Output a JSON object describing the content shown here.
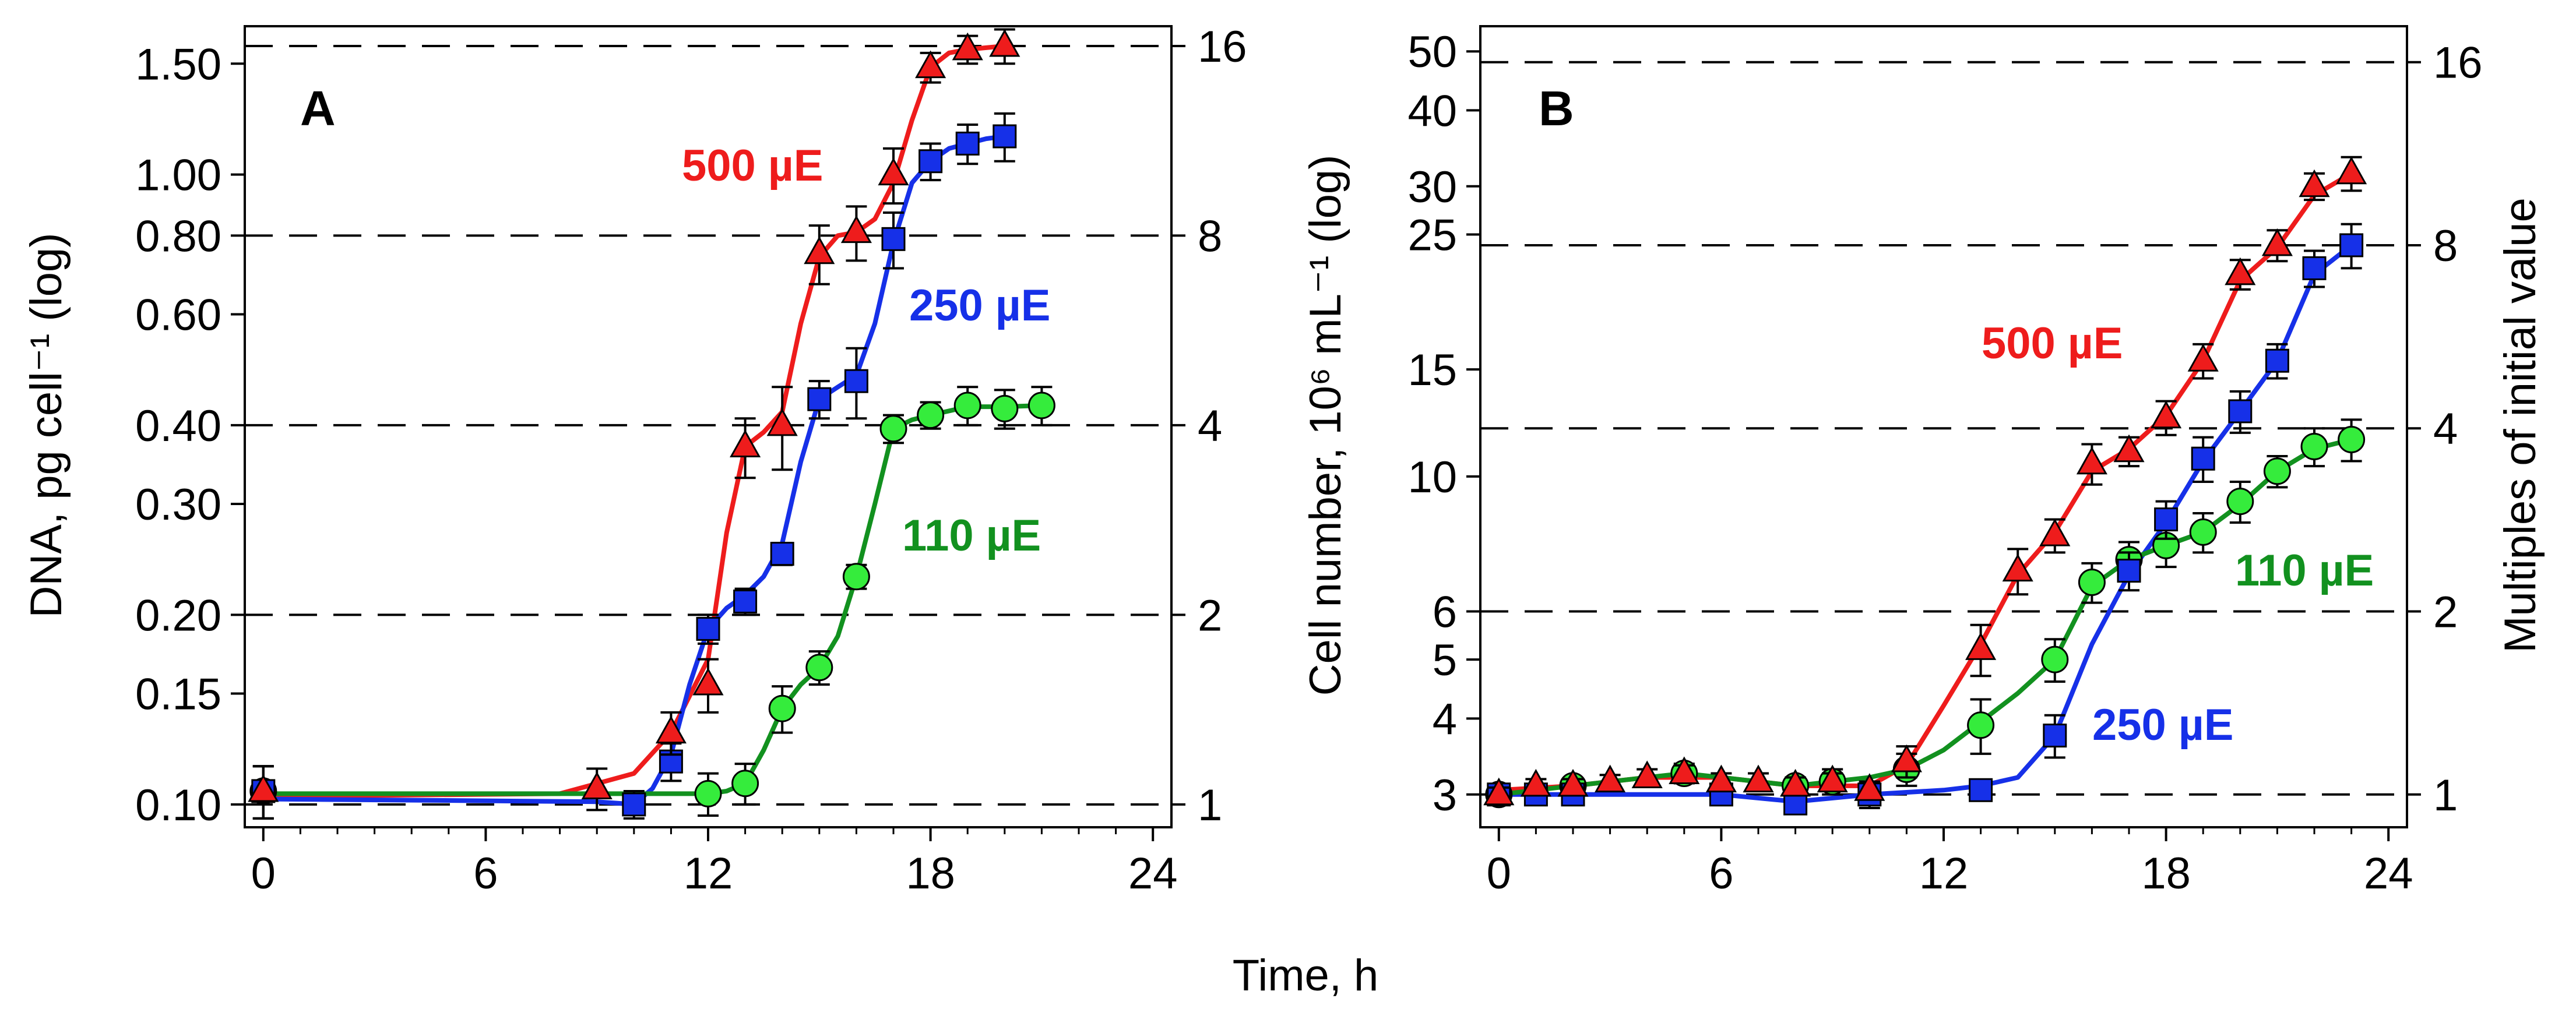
{
  "figure": {
    "shared_xlabel": "Time, h"
  },
  "chart_data": [
    {
      "type": "line",
      "panel_label": "A",
      "xlabel": "Time, h",
      "ylabel": "DNA, pg cell⁻¹ (log)",
      "y_scale": "log",
      "xlim": [
        -0.5,
        24.5
      ],
      "ylim": [
        0.092,
        1.72
      ],
      "x_ticks": [
        0,
        6,
        12,
        18,
        24
      ],
      "x_tick_labels": [
        "0",
        "6",
        "12",
        "18",
        "24"
      ],
      "y_ticks": [
        0.1,
        0.15,
        0.2,
        0.3,
        0.4,
        0.6,
        0.8,
        1.0,
        1.5
      ],
      "y_tick_labels": [
        "0.10",
        "0.15",
        "0.20",
        "0.30",
        "0.40",
        "0.60",
        "0.80",
        "1.00",
        "1.50"
      ],
      "right_axis": {
        "label": "",
        "ticks": [
          1,
          2,
          4,
          8,
          16
        ],
        "tick_labels": [
          "1",
          "2",
          "4",
          "8",
          "16"
        ],
        "base_value": 0.1
      },
      "series": [
        {
          "name": "500 µE",
          "label": "500 µE",
          "color": "#ee1c1c",
          "marker": "triangle",
          "x": [
            0,
            9,
            11,
            12,
            13,
            14,
            15,
            16,
            17,
            18,
            19,
            20
          ],
          "y": [
            0.105,
            0.106,
            0.13,
            0.155,
            0.37,
            0.4,
            0.75,
            0.81,
            1.0,
            1.48,
            1.58,
            1.6
          ],
          "err": [
            0.01,
            0.008,
            0.01,
            0.015,
            0.04,
            0.06,
            0.08,
            0.08,
            0.1,
            0.08,
            0.08,
            0.1
          ],
          "curve_x": [
            0,
            8,
            10,
            11,
            12,
            12.5,
            13,
            13.5,
            14,
            14.5,
            15,
            15.5,
            16,
            16.5,
            17,
            17.5,
            18,
            18.5,
            19,
            19.5,
            20
          ],
          "curve_y": [
            0.103,
            0.104,
            0.112,
            0.13,
            0.17,
            0.27,
            0.37,
            0.39,
            0.42,
            0.58,
            0.74,
            0.8,
            0.81,
            0.85,
            0.97,
            1.22,
            1.48,
            1.56,
            1.58,
            1.59,
            1.6
          ]
        },
        {
          "name": "250 µE",
          "label": "250 µE",
          "color": "#1630e8",
          "marker": "square",
          "x": [
            0,
            10,
            11,
            12,
            13,
            14,
            15,
            16,
            17,
            18,
            19,
            20
          ],
          "y": [
            0.105,
            0.1,
            0.117,
            0.19,
            0.21,
            0.25,
            0.44,
            0.47,
            0.79,
            1.05,
            1.12,
            1.15
          ],
          "err": [
            0.01,
            0.005,
            0.008,
            0.01,
            0.01,
            0.01,
            0.03,
            0.06,
            0.08,
            0.07,
            0.08,
            0.1
          ],
          "curve_x": [
            0,
            9,
            10,
            10.5,
            11,
            11.5,
            12,
            12.5,
            13,
            13.5,
            14,
            14.5,
            15,
            15.5,
            16,
            16.5,
            17,
            17.5,
            18,
            18.5,
            19,
            19.5,
            20
          ],
          "curve_y": [
            0.102,
            0.101,
            0.1,
            0.106,
            0.12,
            0.155,
            0.19,
            0.205,
            0.215,
            0.23,
            0.26,
            0.35,
            0.44,
            0.46,
            0.48,
            0.58,
            0.78,
            0.97,
            1.05,
            1.1,
            1.12,
            1.14,
            1.15
          ]
        },
        {
          "name": "110 µE",
          "label": "110 µE",
          "color": "#12911f",
          "fill": "#35ec3c",
          "marker": "circle",
          "x": [
            0,
            12,
            13,
            14,
            15,
            16,
            17,
            18,
            19,
            20,
            21
          ],
          "y": [
            0.105,
            0.104,
            0.108,
            0.142,
            0.165,
            0.23,
            0.395,
            0.415,
            0.43,
            0.425,
            0.43
          ],
          "err": [
            0.01,
            0.008,
            0.008,
            0.012,
            0.01,
            0.01,
            0.02,
            0.02,
            0.03,
            0.03,
            0.03
          ],
          "curve_x": [
            0,
            11,
            12,
            12.5,
            13,
            13.5,
            14,
            14.5,
            15,
            15.5,
            16,
            16.5,
            17,
            17.5,
            18,
            19,
            20,
            21
          ],
          "curve_y": [
            0.104,
            0.104,
            0.104,
            0.105,
            0.108,
            0.122,
            0.142,
            0.155,
            0.165,
            0.185,
            0.23,
            0.3,
            0.395,
            0.408,
            0.415,
            0.428,
            0.428,
            0.43
          ]
        }
      ]
    },
    {
      "type": "line",
      "panel_label": "B",
      "xlabel": "Time, h",
      "ylabel": "Cell number, 10⁶ mL⁻¹ (log)",
      "y_scale": "log",
      "xlim": [
        -0.5,
        24.5
      ],
      "ylim": [
        2.65,
        55
      ],
      "x_ticks": [
        0,
        6,
        12,
        18,
        24
      ],
      "x_tick_labels": [
        "0",
        "6",
        "12",
        "18",
        "24"
      ],
      "y_ticks": [
        3,
        4,
        5,
        6,
        10,
        15,
        25,
        30,
        40,
        50
      ],
      "y_tick_labels": [
        "3",
        "4",
        "5",
        "6",
        "10",
        "15",
        "25",
        "30",
        "40",
        "50"
      ],
      "right_axis": {
        "label": "Multiples of initial value",
        "ticks": [
          1,
          2,
          4,
          8,
          16
        ],
        "tick_labels": [
          "1",
          "2",
          "4",
          "8",
          "16"
        ],
        "base_value": 3
      },
      "series": [
        {
          "name": "500 µE",
          "label": "500 µE",
          "color": "#ee1c1c",
          "marker": "triangle",
          "x": [
            0,
            1,
            2,
            3,
            4,
            5,
            6,
            7,
            8,
            9,
            10,
            11,
            13,
            14,
            15,
            16,
            17,
            18,
            19,
            20,
            21,
            22,
            23
          ],
          "y": [
            3.0,
            3.1,
            3.1,
            3.15,
            3.2,
            3.25,
            3.15,
            3.15,
            3.1,
            3.15,
            3.05,
            3.4,
            5.2,
            7.0,
            8.0,
            10.5,
            11.0,
            12.5,
            15.5,
            21.5,
            24.0,
            30.0,
            31.5
          ],
          "err": [
            0.08,
            0.08,
            0.08,
            0.08,
            0.1,
            0.1,
            0.1,
            0.1,
            0.1,
            0.1,
            0.1,
            0.2,
            0.5,
            0.6,
            0.5,
            0.8,
            0.6,
            0.8,
            1.0,
            1.2,
            1.4,
            1.5,
            2.0
          ],
          "curve_x": [
            0,
            2,
            4,
            6,
            8,
            10,
            11,
            12,
            13,
            14,
            15,
            16,
            17,
            18,
            19,
            20,
            21,
            22,
            23
          ],
          "curve_y": [
            3.05,
            3.1,
            3.2,
            3.2,
            3.1,
            3.1,
            3.35,
            4.2,
            5.3,
            6.9,
            8.1,
            10.2,
            11.1,
            12.6,
            15.5,
            21.0,
            23.8,
            29.0,
            31.5
          ]
        },
        {
          "name": "250 µE",
          "label": "250 µE",
          "color": "#1630e8",
          "marker": "square",
          "x": [
            0,
            1,
            2,
            6,
            8,
            10,
            13,
            15,
            17,
            18,
            19,
            20,
            21,
            22,
            23
          ],
          "y": [
            3.0,
            3.0,
            3.0,
            3.0,
            2.9,
            3.0,
            3.05,
            3.75,
            7.0,
            8.5,
            10.7,
            12.8,
            15.5,
            22.0,
            24.0
          ],
          "err": [
            0.08,
            0.08,
            0.08,
            0.1,
            0.1,
            0.15,
            0.1,
            0.3,
            0.5,
            0.6,
            0.9,
            1.0,
            1.0,
            1.5,
            2.0
          ],
          "curve_x": [
            0,
            2,
            4,
            6,
            8,
            10,
            12,
            13,
            14,
            15,
            16,
            17,
            18,
            19,
            20,
            21,
            22,
            23
          ],
          "curve_y": [
            3.0,
            3.0,
            3.0,
            3.0,
            2.92,
            3.0,
            3.05,
            3.1,
            3.2,
            3.75,
            5.3,
            6.9,
            8.4,
            10.6,
            12.8,
            15.5,
            21.5,
            24.0
          ]
        },
        {
          "name": "110 µE",
          "label": "110 µE",
          "color": "#12911f",
          "fill": "#35ec3c",
          "marker": "circle",
          "x": [
            0,
            2,
            5,
            8,
            9,
            11,
            13,
            15,
            16,
            17,
            18,
            19,
            20,
            21,
            22,
            23
          ],
          "y": [
            3.0,
            3.1,
            3.25,
            3.1,
            3.15,
            3.3,
            3.9,
            5.0,
            6.7,
            7.3,
            7.7,
            8.1,
            9.1,
            10.2,
            11.2,
            11.5
          ],
          "err": [
            0.08,
            0.08,
            0.12,
            0.1,
            0.15,
            0.2,
            0.4,
            0.4,
            0.5,
            0.5,
            0.6,
            0.6,
            0.7,
            0.6,
            0.8,
            0.9
          ],
          "curve_x": [
            0,
            2,
            4,
            5,
            6,
            8,
            9,
            10,
            11,
            12,
            13,
            14,
            15,
            16,
            17,
            18,
            19,
            20,
            21,
            22,
            23
          ],
          "curve_y": [
            3.0,
            3.1,
            3.2,
            3.25,
            3.2,
            3.1,
            3.15,
            3.2,
            3.3,
            3.55,
            3.95,
            4.4,
            5.0,
            6.6,
            7.3,
            7.7,
            8.1,
            9.0,
            10.2,
            11.1,
            11.5
          ]
        }
      ]
    }
  ]
}
